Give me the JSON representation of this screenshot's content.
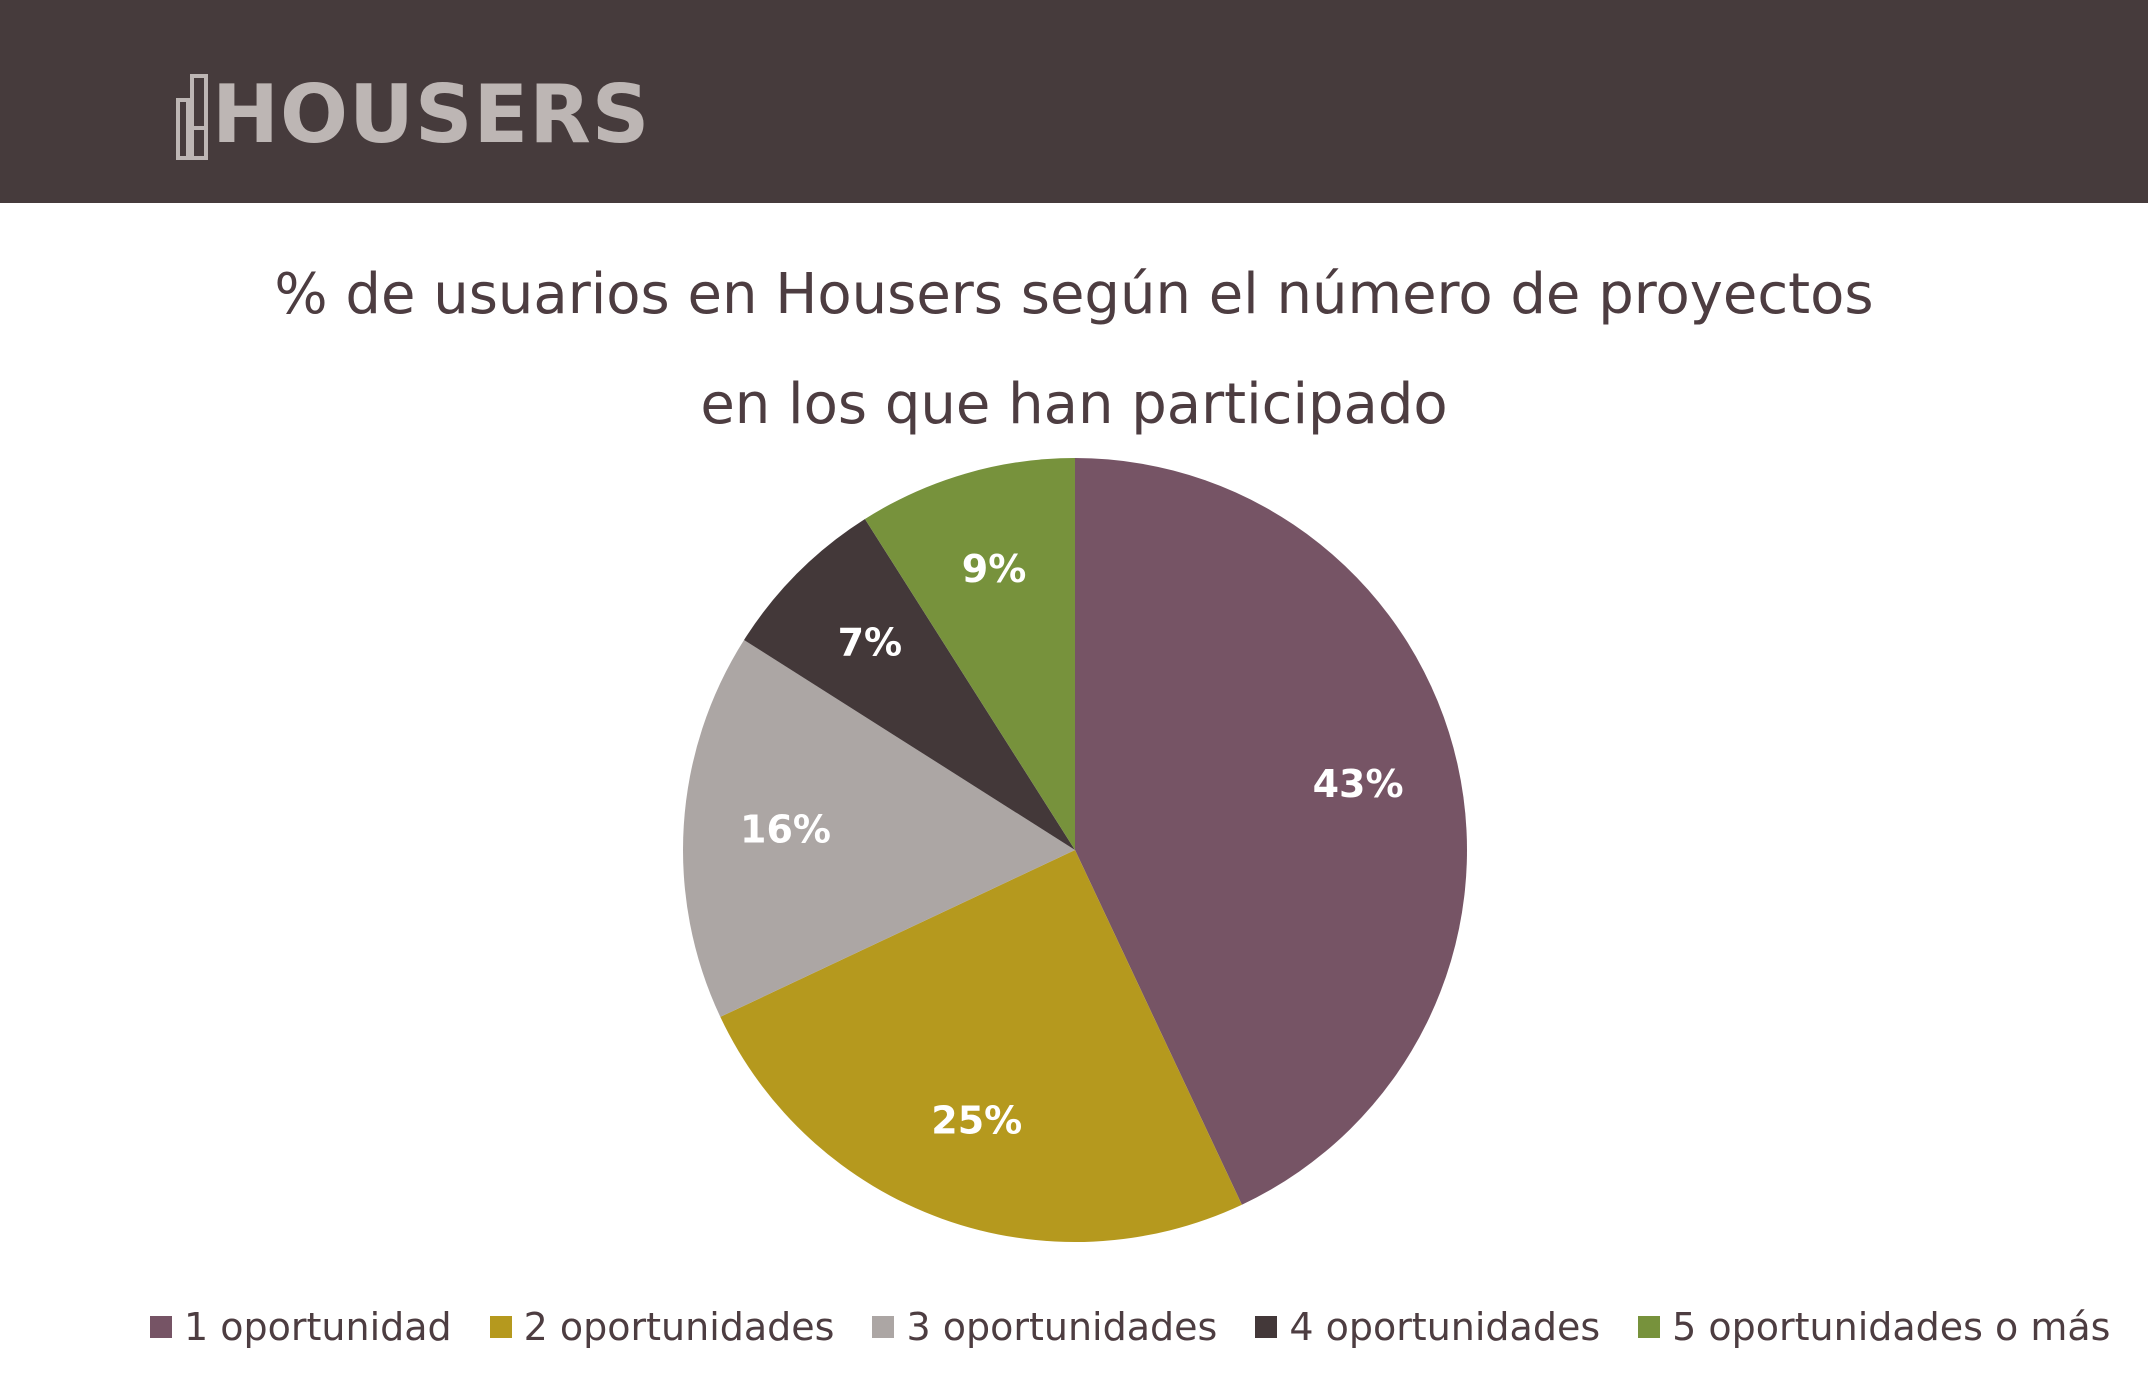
{
  "brand": {
    "logo_text": "HOUSERS"
  },
  "colors": {
    "header": "#463b3c",
    "logo": "#bdb6b4",
    "title": "#4d3d41"
  },
  "chart_data": {
    "type": "pie",
    "title_line1": "% de usuarios en Housers según el número de proyectos",
    "title_line2": "en los  que  han participado",
    "legend_position": "bottom",
    "slices": [
      {
        "label": "1 oportunidad",
        "value": 43,
        "display": "43%",
        "color": "#765465"
      },
      {
        "label": "2 oportunidades",
        "value": 25,
        "display": "25%",
        "color": "#b5991e"
      },
      {
        "label": "3 oportunidades",
        "value": 16,
        "display": "16%",
        "color": "#aca6a4"
      },
      {
        "label": "4 oportunidades",
        "value": 7,
        "display": "7%",
        "color": "#433839"
      },
      {
        "label": "5 oportunidades o más",
        "value": 9,
        "display": "9%",
        "color": "#77923c"
      }
    ]
  }
}
